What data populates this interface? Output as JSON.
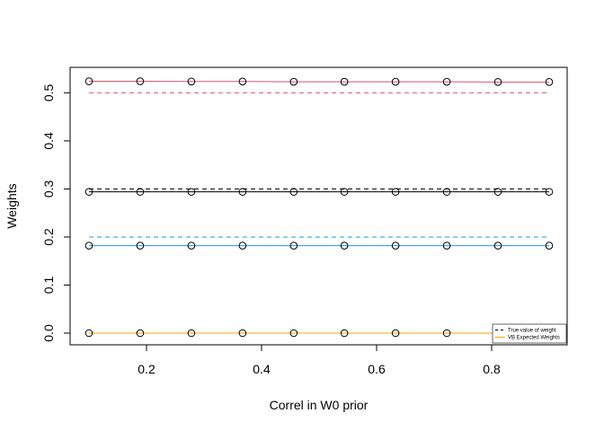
{
  "chart_data": {
    "type": "line",
    "title": "",
    "xlabel": "Correl in W0 prior",
    "ylabel": "Weights",
    "xlim": [
      0.1,
      0.9
    ],
    "ylim": [
      0.0,
      0.525
    ],
    "x_ticks": [
      0.2,
      0.4,
      0.6,
      0.8
    ],
    "x_tick_labels": [
      "0.2",
      "0.4",
      "0.6",
      "0.8"
    ],
    "y_ticks": [
      0.0,
      0.1,
      0.2,
      0.3,
      0.4,
      0.5
    ],
    "y_tick_labels": [
      "0.0",
      "0.1",
      "0.2",
      "0.3",
      "0.4",
      "0.5"
    ],
    "grid": false,
    "legend_position": "bottom-right",
    "legend": [
      {
        "label": "True value of weight",
        "style": "dashed",
        "color": "#000000"
      },
      {
        "label": "VB Expected Weights",
        "style": "solid",
        "color": "#FFA500"
      }
    ],
    "x": [
      0.1,
      0.189,
      0.278,
      0.367,
      0.456,
      0.544,
      0.633,
      0.722,
      0.811,
      0.9
    ],
    "series": [
      {
        "color": "#DF536B",
        "true_value": 0.5,
        "values": [
          0.524,
          0.524,
          0.5235,
          0.5235,
          0.523,
          0.523,
          0.523,
          0.523,
          0.5225,
          0.5225
        ]
      },
      {
        "color": "#000000",
        "true_value": 0.3,
        "values": [
          0.294,
          0.294,
          0.294,
          0.294,
          0.294,
          0.294,
          0.294,
          0.294,
          0.294,
          0.294
        ]
      },
      {
        "color": "#2297E6",
        "true_value": 0.2,
        "values": [
          0.182,
          0.182,
          0.182,
          0.182,
          0.182,
          0.182,
          0.182,
          0.182,
          0.182,
          0.182
        ]
      },
      {
        "color": "#FFA500",
        "true_value": 0.0,
        "values": [
          0.0,
          0.0,
          0.0,
          0.0,
          0.0,
          0.0,
          0.0,
          0.0,
          0.0,
          0.0
        ]
      }
    ]
  }
}
